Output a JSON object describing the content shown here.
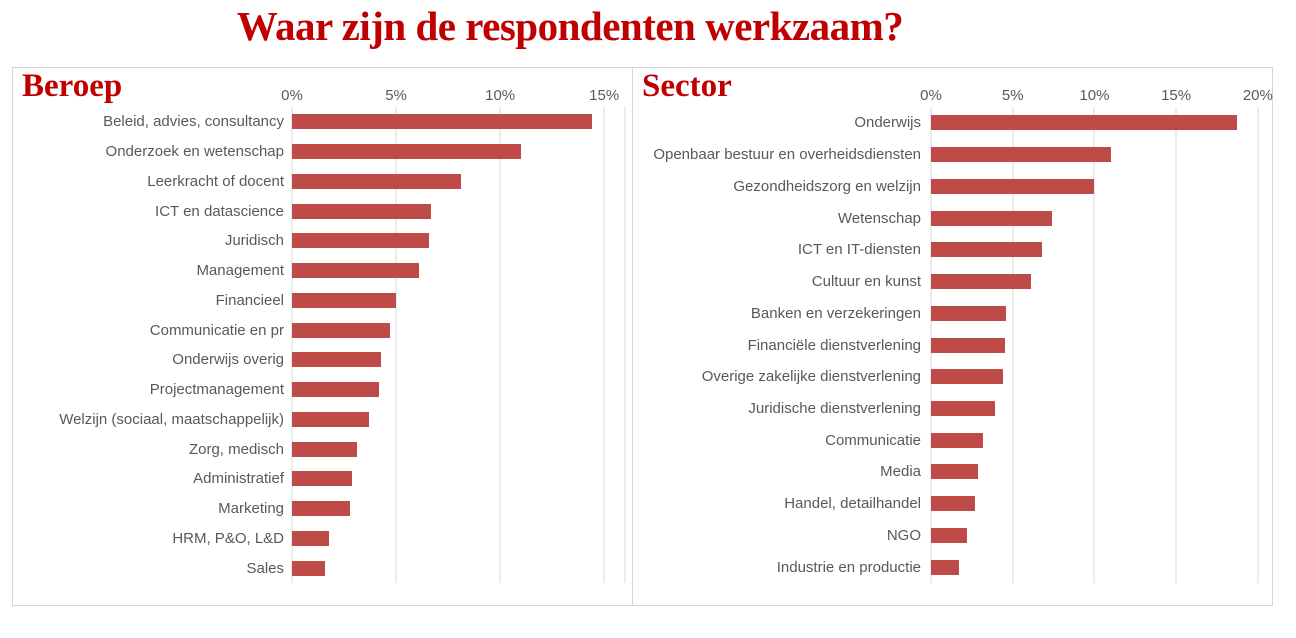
{
  "page": {
    "title": "Waar zijn de respondenten werkzaam?"
  },
  "colors": {
    "heading_red": "#C00000",
    "bar_red": "#BE4B48",
    "label_gray": "#595959",
    "gridline_gray": "#D9D9D9",
    "panel_border_gray": "#D6D6D6",
    "background": "#FFFFFF"
  },
  "chart_data": [
    {
      "type": "bar",
      "orientation": "horizontal",
      "title": "Beroep",
      "categories": [
        "Beleid, advies, consultancy",
        "Onderzoek en wetenschap",
        "Leerkracht of docent",
        "ICT en datascience",
        "Juridisch",
        "Management",
        "Financieel",
        "Communicatie en pr",
        "Onderwijs overig",
        "Projectmanagement",
        "Welzijn (sociaal, maatschappelijk)",
        "Zorg, medisch",
        "Administratief",
        "Marketing",
        "HRM, P&O, L&D",
        "Sales"
      ],
      "values": [
        14.4,
        11.0,
        8.1,
        6.7,
        6.6,
        6.1,
        5.0,
        4.7,
        4.3,
        4.2,
        3.7,
        3.1,
        2.9,
        2.8,
        1.8,
        1.6
      ],
      "value_unit": "%",
      "ticks": [
        0,
        5,
        10,
        15
      ],
      "tick_labels": [
        "0%",
        "5%",
        "10%",
        "15%"
      ],
      "xlim": [
        0,
        16
      ],
      "axis_position": "top",
      "grid": "vertical",
      "plot_edge": true,
      "legend": "none",
      "bar_color": "#BE4B48"
    },
    {
      "type": "bar",
      "orientation": "horizontal",
      "title": "Sector",
      "categories": [
        "Onderwijs",
        "Openbaar bestuur en overheidsdiensten",
        "Gezondheidszorg en welzijn",
        "Wetenschap",
        "ICT en IT-diensten",
        "Cultuur en kunst",
        "Banken en verzekeringen",
        "Financiële dienstverlening",
        "Overige zakelijke dienstverlening",
        "Juridische dienstverlening",
        "Communicatie",
        "Media",
        "Handel, detailhandel",
        "NGO",
        "Industrie en productie"
      ],
      "values": [
        18.7,
        11.0,
        10.0,
        7.4,
        6.8,
        6.1,
        4.6,
        4.5,
        4.4,
        3.9,
        3.2,
        2.9,
        2.7,
        2.2,
        1.7
      ],
      "value_unit": "%",
      "ticks": [
        0,
        5,
        10,
        15,
        20
      ],
      "tick_labels": [
        "0%",
        "5%",
        "10%",
        "15%",
        "20%"
      ],
      "xlim": [
        0,
        20.5
      ],
      "axis_position": "top",
      "grid": "vertical",
      "plot_edge": false,
      "legend": "none",
      "bar_color": "#BE4B48"
    }
  ]
}
